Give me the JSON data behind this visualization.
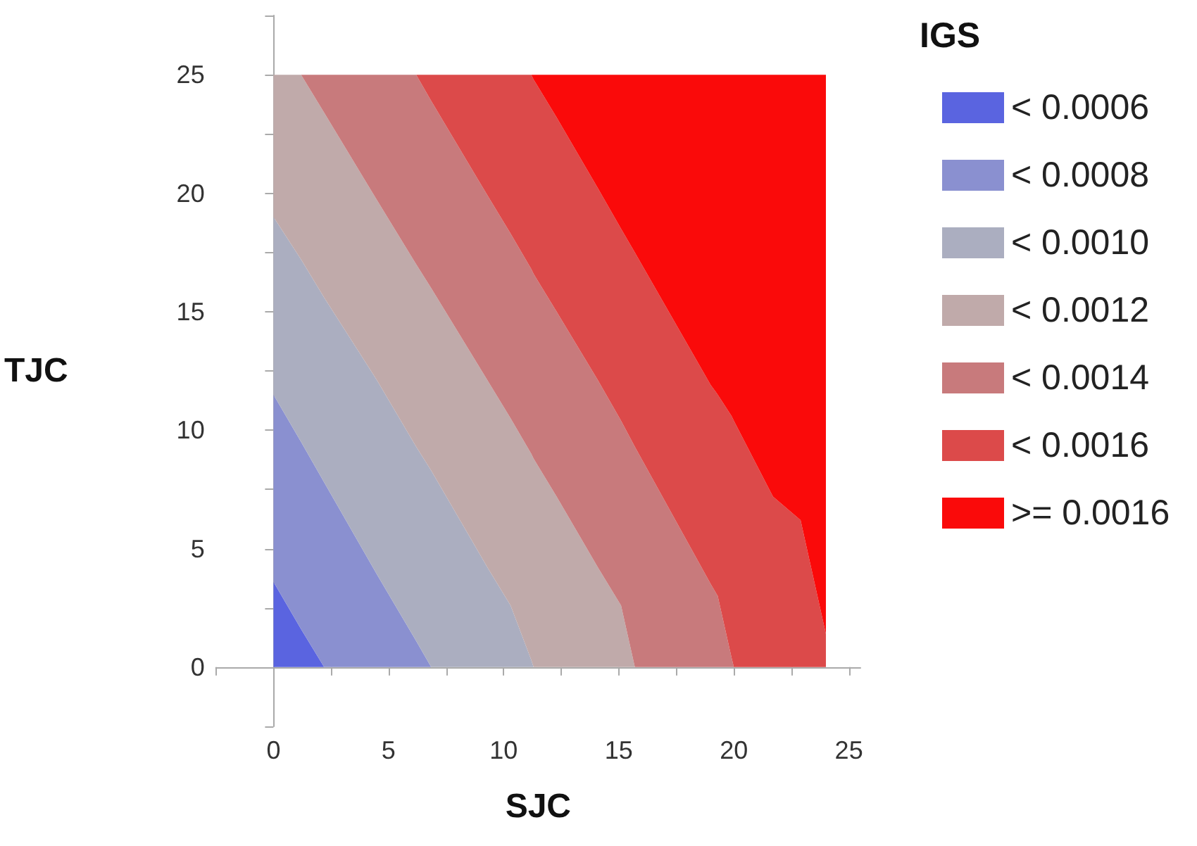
{
  "chart_data": {
    "type": "area",
    "stacked": true,
    "xlabel": "SJC",
    "ylabel": "TJC",
    "legend_title": "IGS",
    "legend": "right",
    "xlim": [
      -2.5,
      25.5
    ],
    "ylim": [
      -2.5,
      27.5
    ],
    "xticks": [
      {
        "value": -2.5,
        "label": null
      },
      0,
      {
        "value": 2.5,
        "label": null
      },
      5,
      {
        "value": 7.5,
        "label": null
      },
      10,
      {
        "value": 12.5,
        "label": null
      },
      15,
      {
        "value": 17.5,
        "label": null
      },
      20,
      {
        "value": 22.5,
        "label": null
      },
      25
    ],
    "yticks": [
      {
        "value": -2.5,
        "label": null
      },
      0,
      {
        "value": 2.5,
        "label": null
      },
      5,
      {
        "value": 7.5,
        "label": null
      },
      10,
      {
        "value": 12.5,
        "label": null
      },
      15,
      {
        "value": 17.5,
        "label": null
      },
      20,
      {
        "value": 22.5,
        "label": null
      },
      25,
      {
        "value": 27.5,
        "label": null
      }
    ],
    "x": [
      0,
      1.2,
      2.2,
      4.5,
      6.2,
      6.85,
      9.3,
      10.3,
      11.2,
      11.3,
      12.3,
      14.1,
      15.1,
      15.7,
      19,
      19.3,
      19.9,
      20,
      21.7,
      22.9,
      24
    ],
    "series": [
      {
        "name": "< 0.0006",
        "color": "#5a64e0",
        "values": [
          3.6,
          1.6,
          0,
          null,
          null,
          null,
          null,
          null,
          null,
          null,
          null,
          null,
          null,
          null,
          null,
          null,
          null,
          null,
          null,
          null,
          null
        ]
      },
      {
        "name": "< 0.0008",
        "color": "#8a90d0",
        "values": [
          7.9,
          7.9,
          7.8,
          3.9,
          1.1,
          0,
          null,
          null,
          null,
          null,
          null,
          null,
          null,
          null,
          null,
          null,
          null,
          null,
          null,
          null,
          null
        ]
      },
      {
        "name": "< 0.0010",
        "color": "#abaec0",
        "values": [
          7.5,
          7.7,
          7.8,
          8.2,
          8.2,
          8.3,
          4.2,
          2.6,
          0.3,
          0,
          null,
          null,
          null,
          null,
          null,
          null,
          null,
          null,
          null,
          null,
          null
        ]
      },
      {
        "name": "< 0.0012",
        "color": "#c0aaaa",
        "values": [
          6,
          7.8,
          7.8,
          7.6,
          7.7,
          7.7,
          7.9,
          7.9,
          8.7,
          8.8,
          7.2,
          4.2,
          2.6,
          0,
          null,
          null,
          null,
          null,
          null,
          null,
          null
        ]
      },
      {
        "name": "< 0.0014",
        "color": "#c87a7c",
        "values": [
          null,
          0,
          1.6,
          5.3,
          8,
          7.9,
          7.8,
          7.8,
          7.8,
          7.8,
          7.8,
          7.9,
          7.8,
          9.3,
          3.5,
          3,
          0.4,
          0,
          null,
          null,
          null
        ]
      },
      {
        "name": "< 0.0016",
        "color": "#dc4a4a",
        "values": [
          null,
          null,
          null,
          null,
          0,
          1.1,
          5.1,
          6.7,
          8.2,
          8.2,
          8.2,
          8.1,
          8.1,
          8.2,
          8.4,
          8.5,
          10.2,
          10.4,
          7.2,
          6.2,
          1.4
        ]
      },
      {
        "name": ">= 0.0016",
        "color": "#fa0a0a",
        "values": [
          null,
          null,
          null,
          null,
          null,
          null,
          null,
          null,
          0,
          0.2,
          1.8,
          4.8,
          6.5,
          7.5,
          13.1,
          13.5,
          14.4,
          14.6,
          17.8,
          18.8,
          23.6
        ]
      }
    ]
  }
}
